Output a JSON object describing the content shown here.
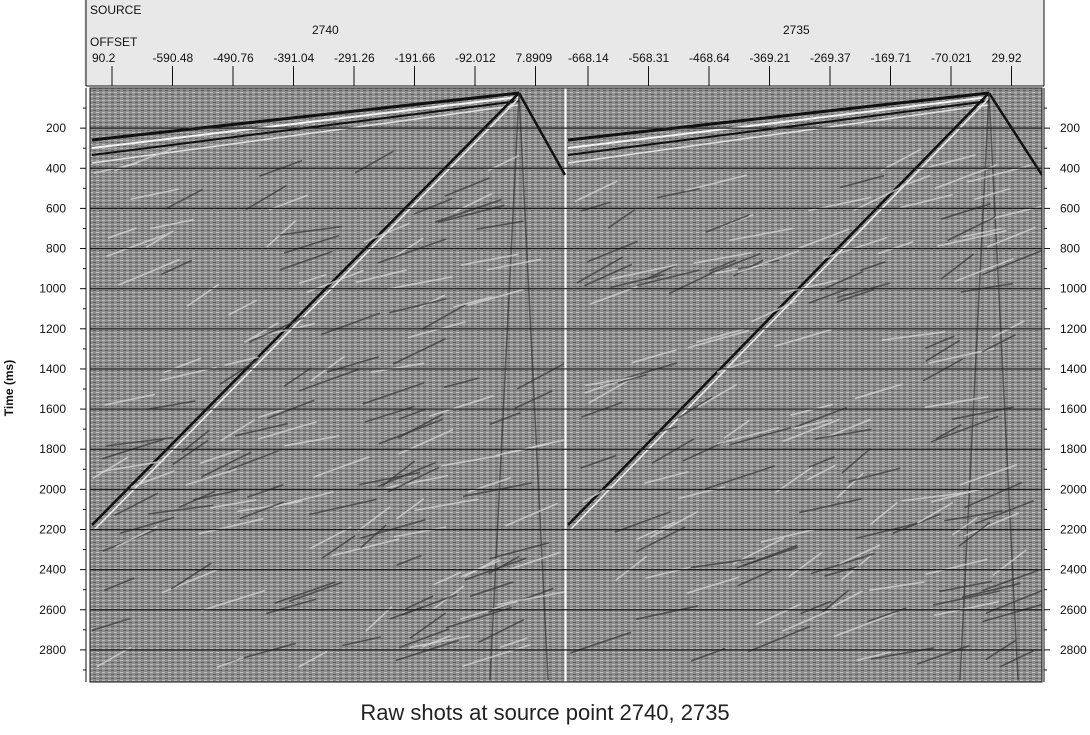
{
  "header": {
    "source_label": "SOURCE",
    "offset_label": "OFFSET",
    "sources": [
      {
        "id": "2740",
        "offsets": [
          "90.2",
          "-590.48",
          "-490.76",
          "-391.04",
          "-291.26",
          "-191.66",
          "-92.012",
          "7.8909"
        ]
      },
      {
        "id": "2735",
        "offsets": [
          "-668.14",
          "-568.31",
          "-468.64",
          "-369.21",
          "-269.37",
          "-169.71",
          "-70.021",
          "29.92"
        ]
      }
    ]
  },
  "axis": {
    "ylabel": "Time (ms)",
    "ticks": [
      "200",
      "400",
      "600",
      "800",
      "1000",
      "1200",
      "1400",
      "1600",
      "1800",
      "2000",
      "2200",
      "2400",
      "2600",
      "2800"
    ],
    "right_ticks": [
      "200",
      "400",
      "600",
      "800",
      "1000",
      "1200",
      "1400",
      "1600",
      "1800",
      "2000",
      "2200",
      "2400",
      "2600",
      "2800"
    ]
  },
  "caption": "Raw shots at source point 2740, 2735",
  "colors": {
    "panel": "#8f8f8f",
    "header_bg": "#e8e8e8",
    "ink": "#111111"
  }
}
